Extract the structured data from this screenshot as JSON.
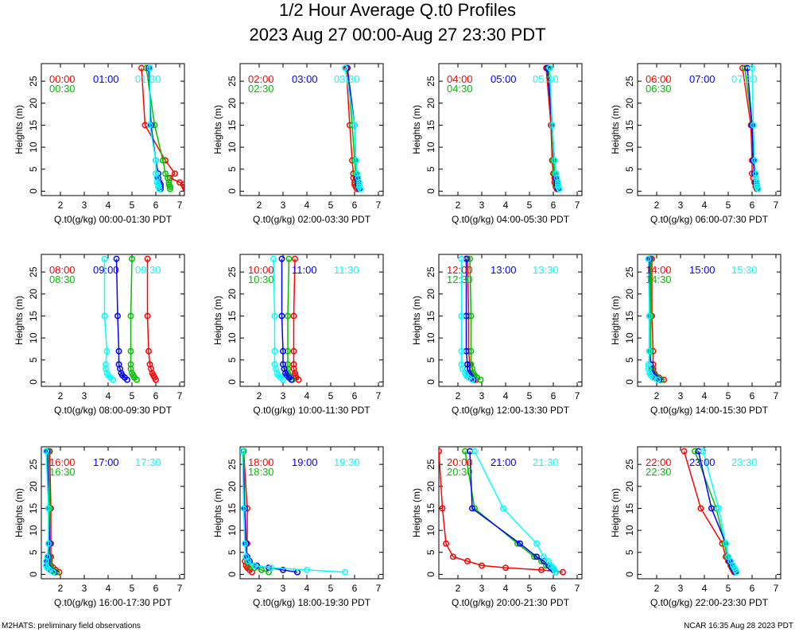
{
  "header": {
    "title": "1/2 Hour Average Q.t0 Profiles",
    "subtitle": "2023 Aug 27 00:00-Aug 27 23:30 PDT"
  },
  "footer": {
    "left": "M2HATS: preliminary field observations",
    "right": "NCAR 16:35 Aug 28 2023 PDT"
  },
  "colors": {
    "series": [
      "#ff0000",
      "#00c000",
      "#0000ff",
      "#00ffff"
    ]
  },
  "heights": [
    0.5,
    1,
    1.5,
    2,
    3,
    4,
    7,
    15,
    28
  ],
  "chart_data": [
    {
      "type": "line",
      "xlabel": "Q.t0(g/kg) 00:00-01:30 PDT",
      "ylabel": "Heights (m)",
      "xlim": [
        1.2,
        7.2
      ],
      "ylim": [
        -1,
        29
      ],
      "xticks": [
        2,
        3,
        4,
        5,
        6,
        7
      ],
      "yticks": [
        0,
        5,
        10,
        15,
        20,
        25
      ],
      "series": [
        {
          "name": "00:00",
          "values": [
            7.25,
            7.2,
            7.15,
            7.0,
            6.6,
            6.8,
            6.4,
            5.55,
            5.4
          ]
        },
        {
          "name": "00:30",
          "values": [
            6.6,
            6.6,
            6.55,
            6.55,
            6.5,
            6.4,
            6.3,
            5.95,
            5.6
          ]
        },
        {
          "name": "01:00",
          "values": [
            6.2,
            6.2,
            6.2,
            6.15,
            6.1,
            6.1,
            6.0,
            5.8,
            5.7
          ]
        },
        {
          "name": "01:30",
          "values": [
            6.15,
            6.1,
            6.1,
            6.05,
            6.05,
            6.0,
            6.0,
            5.75,
            5.75
          ]
        }
      ]
    },
    {
      "type": "line",
      "xlabel": "Q.t0(g/kg) 02:00-03:30 PDT",
      "ylabel": "Heights (m)",
      "xlim": [
        1.2,
        7.2
      ],
      "ylim": [
        -1,
        29
      ],
      "xticks": [
        2,
        3,
        4,
        5,
        6,
        7
      ],
      "yticks": [
        0,
        5,
        10,
        15,
        20,
        25
      ],
      "series": [
        {
          "name": "02:00",
          "values": [
            6.1,
            6.05,
            6.0,
            6.0,
            5.95,
            5.95,
            5.9,
            5.8,
            5.65
          ]
        },
        {
          "name": "02:30",
          "values": [
            6.2,
            6.15,
            6.15,
            6.1,
            6.1,
            6.05,
            6.0,
            5.9,
            5.7
          ]
        },
        {
          "name": "03:00",
          "values": [
            6.2,
            6.2,
            6.15,
            6.15,
            6.1,
            6.1,
            6.05,
            6.0,
            5.7
          ]
        },
        {
          "name": "03:30",
          "values": [
            6.25,
            6.2,
            6.2,
            6.2,
            6.15,
            6.1,
            6.05,
            6.0,
            5.6
          ]
        }
      ]
    },
    {
      "type": "line",
      "xlabel": "Q.t0(g/kg) 04:00-05:30 PDT",
      "ylabel": "Heights (m)",
      "xlim": [
        1.2,
        7.2
      ],
      "ylim": [
        -1,
        29
      ],
      "xticks": [
        2,
        3,
        4,
        5,
        6,
        7
      ],
      "yticks": [
        0,
        5,
        10,
        15,
        20,
        25
      ],
      "series": [
        {
          "name": "04:00",
          "values": [
            6.15,
            6.1,
            6.1,
            6.05,
            6.05,
            6.0,
            5.95,
            5.9,
            5.7
          ]
        },
        {
          "name": "04:30",
          "values": [
            6.2,
            6.15,
            6.15,
            6.1,
            6.1,
            6.05,
            6.0,
            5.95,
            5.8
          ]
        },
        {
          "name": "05:00",
          "values": [
            6.2,
            6.2,
            6.15,
            6.15,
            6.1,
            6.1,
            6.05,
            5.95,
            5.75
          ]
        },
        {
          "name": "05:30",
          "values": [
            6.25,
            6.2,
            6.2,
            6.2,
            6.15,
            6.1,
            6.05,
            5.95,
            5.85
          ]
        }
      ]
    },
    {
      "type": "line",
      "xlabel": "Q.t0(g/kg) 06:00-07:30 PDT",
      "ylabel": "Heights (m)",
      "xlim": [
        1.2,
        7.2
      ],
      "ylim": [
        -1,
        29
      ],
      "xticks": [
        2,
        3,
        4,
        5,
        6,
        7
      ],
      "yticks": [
        0,
        5,
        10,
        15,
        20,
        25
      ],
      "series": [
        {
          "name": "06:00",
          "values": [
            6.2,
            6.15,
            6.15,
            6.1,
            6.05,
            6.0,
            6.0,
            5.95,
            5.6
          ]
        },
        {
          "name": "06:30",
          "values": [
            6.25,
            6.2,
            6.2,
            6.15,
            6.15,
            6.1,
            6.05,
            6.0,
            5.7
          ]
        },
        {
          "name": "07:00",
          "values": [
            6.25,
            6.2,
            6.2,
            6.15,
            6.15,
            6.1,
            6.05,
            6.0,
            5.8
          ]
        },
        {
          "name": "07:30",
          "values": [
            6.25,
            6.2,
            6.2,
            6.2,
            6.15,
            6.15,
            6.1,
            6.05,
            6.0
          ]
        }
      ]
    },
    {
      "type": "line",
      "xlabel": "Q.t0(g/kg) 08:00-09:30 PDT",
      "ylabel": "Heights (m)",
      "xlim": [
        1.2,
        7.2
      ],
      "ylim": [
        -1,
        29
      ],
      "xticks": [
        2,
        3,
        4,
        5,
        6,
        7
      ],
      "yticks": [
        0,
        5,
        10,
        15,
        20,
        25
      ],
      "series": [
        {
          "name": "08:00",
          "values": [
            6.0,
            5.95,
            5.9,
            5.85,
            5.8,
            5.75,
            5.7,
            5.65,
            5.65
          ]
        },
        {
          "name": "08:30",
          "values": [
            5.2,
            5.1,
            5.05,
            5.0,
            4.95,
            4.95,
            4.95,
            4.95,
            5.0
          ]
        },
        {
          "name": "09:00",
          "values": [
            4.8,
            4.7,
            4.6,
            4.55,
            4.5,
            4.45,
            4.45,
            4.4,
            4.35
          ]
        },
        {
          "name": "09:30",
          "values": [
            4.2,
            4.1,
            4.0,
            3.95,
            3.9,
            3.9,
            3.95,
            3.85,
            3.85
          ]
        }
      ]
    },
    {
      "type": "line",
      "xlabel": "Q.t0(g/kg) 10:00-11:30 PDT",
      "ylabel": "Heights (m)",
      "xlim": [
        1.2,
        7.2
      ],
      "ylim": [
        -1,
        29
      ],
      "xticks": [
        2,
        3,
        4,
        5,
        6,
        7
      ],
      "yticks": [
        0,
        5,
        10,
        15,
        20,
        25
      ],
      "series": [
        {
          "name": "10:00",
          "values": [
            3.65,
            3.55,
            3.5,
            3.5,
            3.45,
            3.45,
            3.45,
            3.45,
            3.5
          ]
        },
        {
          "name": "10:30",
          "values": [
            3.4,
            3.3,
            3.25,
            3.2,
            3.2,
            3.2,
            3.2,
            3.2,
            3.25
          ]
        },
        {
          "name": "11:00",
          "values": [
            3.35,
            3.25,
            3.15,
            3.1,
            3.05,
            3.0,
            3.0,
            2.95,
            2.95
          ]
        },
        {
          "name": "11:30",
          "values": [
            3.0,
            2.9,
            2.8,
            2.75,
            2.7,
            2.65,
            2.65,
            2.65,
            2.6
          ]
        }
      ]
    },
    {
      "type": "line",
      "xlabel": "Q.t0(g/kg) 12:00-13:30 PDT",
      "ylabel": "Heights (m)",
      "xlim": [
        1.2,
        7.2
      ],
      "ylim": [
        -1,
        29
      ],
      "xticks": [
        2,
        3,
        4,
        5,
        6,
        7
      ],
      "yticks": [
        0,
        5,
        10,
        15,
        20,
        25
      ],
      "series": [
        {
          "name": "12:00",
          "values": [
            2.75,
            2.65,
            2.6,
            2.55,
            2.5,
            2.5,
            2.45,
            2.45,
            2.4
          ]
        },
        {
          "name": "12:30",
          "values": [
            2.95,
            2.8,
            2.7,
            2.65,
            2.6,
            2.55,
            2.55,
            2.55,
            2.5
          ]
        },
        {
          "name": "13:00",
          "values": [
            2.65,
            2.55,
            2.5,
            2.45,
            2.4,
            2.4,
            2.35,
            2.35,
            2.35
          ]
        },
        {
          "name": "13:30",
          "values": [
            2.6,
            2.45,
            2.35,
            2.3,
            2.2,
            2.15,
            2.15,
            2.15,
            2.15
          ]
        }
      ]
    },
    {
      "type": "line",
      "xlabel": "Q.t0(g/kg) 14:00-15:30 PDT",
      "ylabel": "Heights (m)",
      "xlim": [
        1.2,
        7.2
      ],
      "ylim": [
        -1,
        29
      ],
      "xticks": [
        2,
        3,
        4,
        5,
        6,
        7
      ],
      "yticks": [
        0,
        5,
        10,
        15,
        20,
        25
      ],
      "series": [
        {
          "name": "14:00",
          "values": [
            2.3,
            2.1,
            1.95,
            1.9,
            1.85,
            1.85,
            1.85,
            1.8,
            1.8
          ]
        },
        {
          "name": "14:30",
          "values": [
            2.2,
            2.0,
            1.9,
            1.85,
            1.8,
            1.75,
            1.75,
            1.75,
            1.75
          ]
        },
        {
          "name": "15:00",
          "values": [
            2.1,
            1.95,
            1.85,
            1.8,
            1.75,
            1.75,
            1.7,
            1.7,
            1.7
          ]
        },
        {
          "name": "15:30",
          "values": [
            2.05,
            1.85,
            1.75,
            1.7,
            1.65,
            1.65,
            1.7,
            1.7,
            1.65
          ]
        }
      ]
    },
    {
      "type": "line",
      "xlabel": "Q.t0(g/kg) 16:00-17:30 PDT",
      "ylabel": "Heights (m)",
      "xlim": [
        1.2,
        7.2
      ],
      "ylim": [
        -1,
        29
      ],
      "xticks": [
        2,
        3,
        4,
        5,
        6,
        7
      ],
      "yticks": [
        0,
        5,
        10,
        15,
        20,
        25
      ],
      "series": [
        {
          "name": "16:00",
          "values": [
            1.95,
            1.8,
            1.7,
            1.6,
            1.55,
            1.6,
            1.6,
            1.6,
            1.55
          ]
        },
        {
          "name": "16:30",
          "values": [
            1.85,
            1.7,
            1.6,
            1.55,
            1.5,
            1.55,
            1.55,
            1.55,
            1.5
          ]
        },
        {
          "name": "17:00",
          "values": [
            1.75,
            1.6,
            1.5,
            1.45,
            1.45,
            1.5,
            1.55,
            1.5,
            1.45
          ]
        },
        {
          "name": "17:30",
          "values": [
            1.7,
            1.55,
            1.45,
            1.4,
            1.4,
            1.45,
            1.5,
            1.5,
            1.4
          ]
        }
      ]
    },
    {
      "type": "line",
      "xlabel": "Q.t0(g/kg) 18:00-19:30 PDT",
      "ylabel": "Heights (m)",
      "xlim": [
        1.2,
        7.2
      ],
      "ylim": [
        -1,
        29
      ],
      "xticks": [
        2,
        3,
        4,
        5,
        6,
        7
      ],
      "yticks": [
        0,
        5,
        10,
        15,
        20,
        25
      ],
      "series": [
        {
          "name": "18:00",
          "values": [
            1.7,
            1.6,
            1.5,
            1.45,
            1.4,
            1.45,
            1.5,
            1.5,
            1.35
          ]
        },
        {
          "name": "18:30",
          "values": [
            2.4,
            2.1,
            1.8,
            1.6,
            1.5,
            1.45,
            1.45,
            1.4,
            1.35
          ]
        },
        {
          "name": "19:00",
          "values": [
            3.6,
            3.0,
            2.4,
            1.9,
            1.6,
            1.5,
            1.45,
            1.4,
            1.3
          ]
        },
        {
          "name": "19:30",
          "values": [
            5.6,
            4.0,
            2.5,
            1.8,
            1.55,
            1.45,
            1.4,
            1.35,
            1.3
          ]
        }
      ]
    },
    {
      "type": "line",
      "xlabel": "Q.t0(g/kg) 20:00-21:30 PDT",
      "ylabel": "Heights (m)",
      "xlim": [
        1.2,
        7.2
      ],
      "ylim": [
        -1,
        29
      ],
      "xticks": [
        2,
        3,
        4,
        5,
        6,
        7
      ],
      "yticks": [
        0,
        5,
        10,
        15,
        20,
        25
      ],
      "series": [
        {
          "name": "20:00",
          "values": [
            6.4,
            5.5,
            4.0,
            3.0,
            2.4,
            1.8,
            1.5,
            1.35,
            1.2
          ]
        },
        {
          "name": "20:30",
          "values": [
            6.1,
            6.0,
            5.9,
            5.7,
            5.5,
            5.2,
            4.5,
            2.7,
            2.3
          ]
        },
        {
          "name": "21:00",
          "values": [
            6.1,
            6.0,
            5.9,
            5.8,
            5.6,
            5.3,
            4.6,
            2.6,
            2.5
          ]
        },
        {
          "name": "21:30",
          "values": [
            6.1,
            6.05,
            6.0,
            5.9,
            5.8,
            5.6,
            5.3,
            3.9,
            2.7
          ]
        }
      ]
    },
    {
      "type": "line",
      "xlabel": "Q.t0(g/kg) 22:00-23:30 PDT",
      "ylabel": "Heights (m)",
      "xlim": [
        1.2,
        7.2
      ],
      "ylim": [
        -1,
        29
      ],
      "xticks": [
        2,
        3,
        4,
        5,
        6,
        7
      ],
      "yticks": [
        0,
        5,
        10,
        15,
        20,
        25
      ],
      "series": [
        {
          "name": "22:00",
          "values": [
            5.25,
            5.2,
            5.15,
            5.1,
            5.0,
            4.9,
            4.75,
            3.85,
            3.15
          ]
        },
        {
          "name": "22:30",
          "values": [
            5.3,
            5.25,
            5.2,
            5.15,
            5.05,
            4.95,
            4.85,
            4.5,
            3.6
          ]
        },
        {
          "name": "23:00",
          "values": [
            5.3,
            5.25,
            5.2,
            5.15,
            5.05,
            5.0,
            4.9,
            4.3,
            3.75
          ]
        },
        {
          "name": "23:30",
          "values": [
            5.35,
            5.3,
            5.25,
            5.2,
            5.1,
            5.0,
            4.9,
            4.6,
            3.95
          ]
        }
      ]
    }
  ]
}
